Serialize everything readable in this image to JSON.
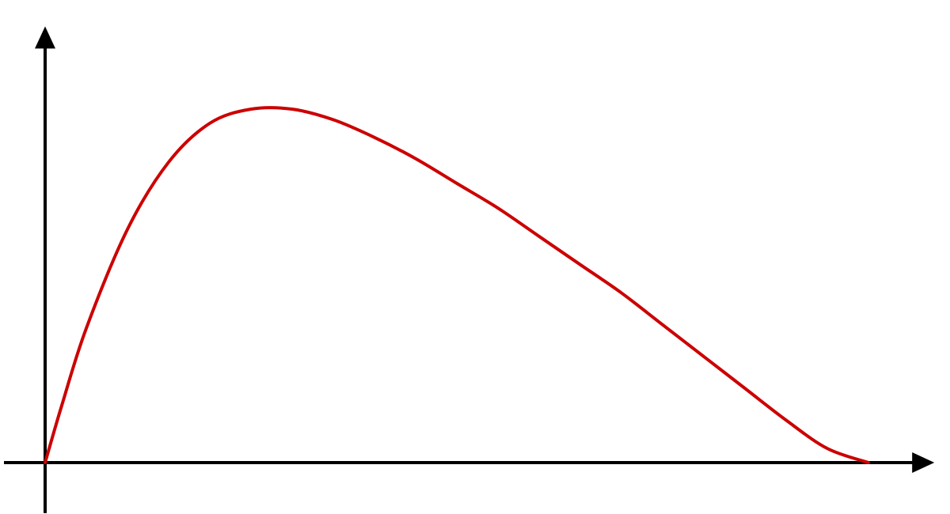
{
  "chart_data": {
    "type": "line",
    "title": "",
    "xlabel": "",
    "ylabel": "",
    "xlim": [
      -0.05,
      1.08
    ],
    "ylim": [
      -0.143,
      1.234
    ],
    "grid": false,
    "legend": "none",
    "tick_labels": false,
    "series": [
      {
        "color": "#cc0000",
        "x": [
          0,
          0.02,
          0.05,
          0.1,
          0.15,
          0.2,
          0.25,
          0.3,
          0.35,
          0.4,
          0.45,
          0.5,
          0.55,
          0.6,
          0.65,
          0.7,
          0.75,
          0.8,
          0.85,
          0.9,
          0.95,
          1.0
        ],
        "y": [
          0,
          0.16,
          0.38,
          0.66,
          0.85,
          0.96,
          1.0,
          1.0,
          0.97,
          0.92,
          0.86,
          0.79,
          0.72,
          0.64,
          0.56,
          0.48,
          0.39,
          0.3,
          0.21,
          0.12,
          0.04,
          0
        ]
      }
    ]
  },
  "colors": {
    "axis": "#000000",
    "curve": "#cc0000",
    "background": "#ffffff"
  }
}
